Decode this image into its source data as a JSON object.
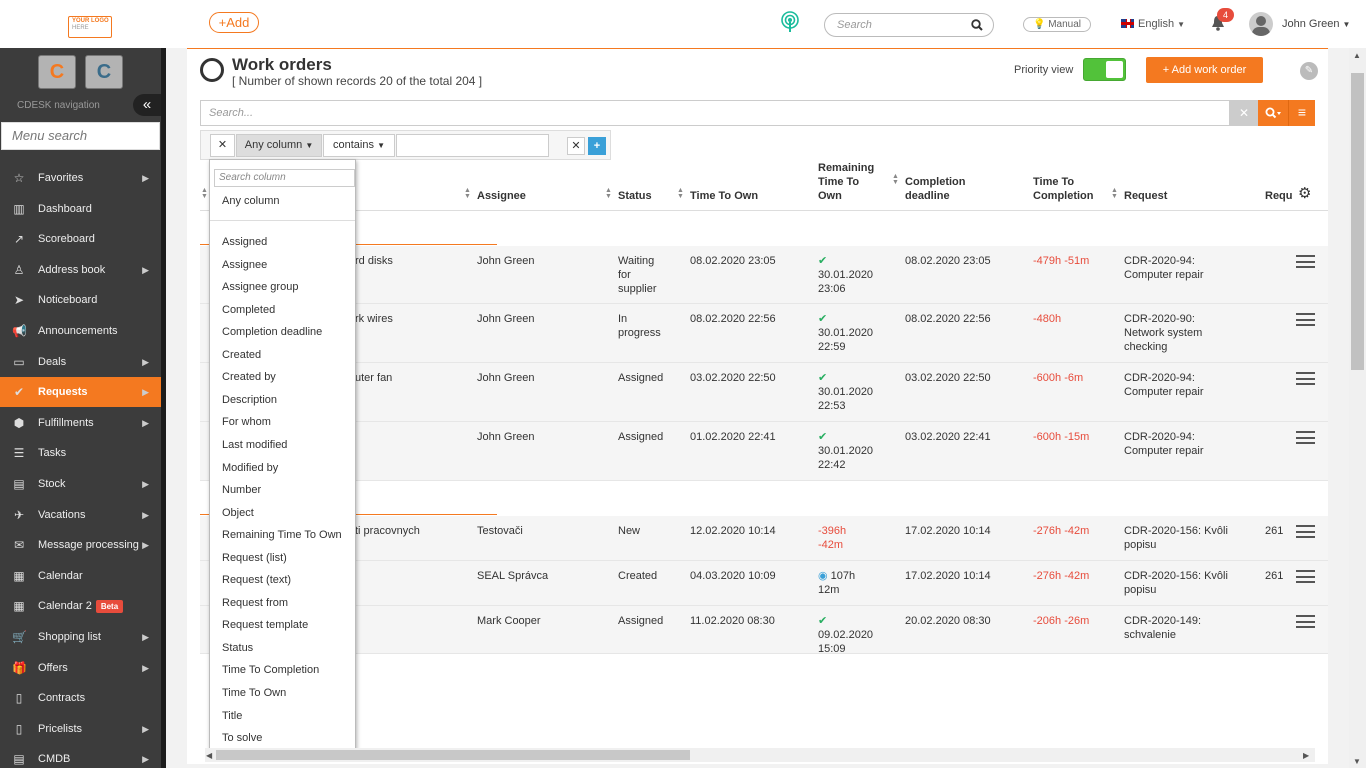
{
  "header": {
    "logo_text": "YOUR LOGO",
    "logo_sub": "HERE",
    "add_label": "+Add",
    "search_placeholder": "Search",
    "manual_label": "Manual",
    "language": "English",
    "notifications_count": "4",
    "user_name": "John Green"
  },
  "sidebar": {
    "nav_title": "CDESK navigation",
    "collapse": "«",
    "menu_search_placeholder": "Menu search",
    "items": [
      {
        "label": "Favorites",
        "icon": "star-icon",
        "arrow": true
      },
      {
        "label": "Dashboard",
        "icon": "bar-chart-icon",
        "arrow": false
      },
      {
        "label": "Scoreboard",
        "icon": "line-chart-icon",
        "arrow": false
      },
      {
        "label": "Address book",
        "icon": "user-icon",
        "arrow": true
      },
      {
        "label": "Noticeboard",
        "icon": "paper-plane-icon",
        "arrow": false
      },
      {
        "label": "Announcements",
        "icon": "megaphone-icon",
        "arrow": false
      },
      {
        "label": "Deals",
        "icon": "wallet-icon",
        "arrow": true
      },
      {
        "label": "Requests",
        "icon": "check-circle-icon",
        "arrow": true,
        "active": true
      },
      {
        "label": "Fulfillments",
        "icon": "cube-icon",
        "arrow": true
      },
      {
        "label": "Tasks",
        "icon": "tasks-icon",
        "arrow": false
      },
      {
        "label": "Stock",
        "icon": "archive-icon",
        "arrow": true
      },
      {
        "label": "Vacations",
        "icon": "plane-icon",
        "arrow": true
      },
      {
        "label": "Message processing",
        "icon": "envelope-icon",
        "arrow": true
      },
      {
        "label": "Calendar",
        "icon": "calendar-icon",
        "arrow": false
      },
      {
        "label": "Calendar 2",
        "icon": "calendar-icon",
        "arrow": false,
        "badge": "Beta"
      },
      {
        "label": "Shopping list",
        "icon": "cart-icon",
        "arrow": true
      },
      {
        "label": "Offers",
        "icon": "gift-icon",
        "arrow": true
      },
      {
        "label": "Contracts",
        "icon": "file-icon",
        "arrow": false
      },
      {
        "label": "Pricelists",
        "icon": "file-icon",
        "arrow": true
      },
      {
        "label": "CMDB",
        "icon": "server-icon",
        "arrow": true
      }
    ]
  },
  "page": {
    "title": "Work orders",
    "subtitle": "[ Number of shown records 20 of the total 204 ]",
    "priority_label": "Priority view",
    "add_button": "+ Add work order",
    "search_placeholder": "Search..."
  },
  "filter": {
    "column": "Any column",
    "operator": "contains",
    "value": ""
  },
  "columns": {
    "assignee": "Assignee",
    "status": "Status",
    "time_to_own": "Time To Own",
    "remaining": [
      "Remaining",
      "Time To",
      "Own"
    ],
    "completion": [
      "Completion",
      "deadline"
    ],
    "time_to_completion": [
      "Time To",
      "Completion"
    ],
    "request": "Request",
    "requ": "Requ"
  },
  "rows": [
    {
      "title": "rd disks",
      "assignee": "John Green",
      "status": [
        "Waiting",
        "for",
        "supplier"
      ],
      "tto": "08.02.2020 23:05",
      "rem": [
        "30.01.2020",
        "23:06"
      ],
      "rem_type": "check",
      "deadline": "08.02.2020 23:05",
      "ttc": "-479h -51m",
      "req": [
        "CDR-2020-94:",
        "Computer repair"
      ],
      "rq": ""
    },
    {
      "title": "rk wires",
      "assignee": "John Green",
      "status": [
        "In",
        "progress"
      ],
      "tto": "08.02.2020 22:56",
      "rem": [
        "30.01.2020",
        "22:59"
      ],
      "rem_type": "check",
      "deadline": "08.02.2020 22:56",
      "ttc": "-480h",
      "req": [
        "CDR-2020-90:",
        "Network system",
        "checking"
      ],
      "rq": ""
    },
    {
      "title": "uter fan",
      "assignee": "John Green",
      "status": [
        "Assigned"
      ],
      "tto": "03.02.2020 22:50",
      "rem": [
        "30.01.2020",
        "22:53"
      ],
      "rem_type": "check",
      "deadline": "03.02.2020 22:50",
      "ttc": "-600h -6m",
      "req": [
        "CDR-2020-94:",
        "Computer repair"
      ],
      "rq": ""
    },
    {
      "title": "",
      "assignee": "John Green",
      "status": [
        "Assigned"
      ],
      "tto": "01.02.2020 22:41",
      "rem": [
        "30.01.2020",
        "22:42"
      ],
      "rem_type": "check",
      "deadline": "03.02.2020 22:41",
      "ttc": "-600h -15m",
      "req": [
        "CDR-2020-94:",
        "Computer repair"
      ],
      "rq": ""
    },
    {
      "title": "ti pracovnych",
      "assignee": "Testovači",
      "status": [
        "New"
      ],
      "tto": "12.02.2020 10:14",
      "rem": [
        "-396h",
        "-42m"
      ],
      "rem_type": "red",
      "deadline": "17.02.2020 10:14",
      "ttc": "-276h -42m",
      "req": [
        "CDR-2020-156: Kvôli",
        "popisu"
      ],
      "rq": "261"
    },
    {
      "title": "",
      "assignee": "SEAL Správca",
      "status": [
        "Created"
      ],
      "tto": "04.03.2020 10:09",
      "rem": [
        "107h",
        "12m"
      ],
      "rem_type": "clock",
      "deadline": "17.02.2020 10:14",
      "ttc": "-276h -42m",
      "req": [
        "CDR-2020-156: Kvôli",
        "popisu"
      ],
      "rq": "261"
    },
    {
      "title": "",
      "assignee": "Mark Cooper",
      "status": [
        "Assigned"
      ],
      "tto": "11.02.2020 08:30",
      "rem": [
        "09.02.2020",
        "15:09"
      ],
      "rem_type": "check",
      "deadline": "20.02.2020 08:30",
      "ttc": "-206h -26m",
      "req": [
        "CDR-2020-149:",
        "schvalenie"
      ],
      "rq": ""
    }
  ],
  "dropdown": {
    "search_placeholder": "Search column",
    "any": "Any column",
    "items": [
      "Assigned",
      "Assignee",
      "Assignee group",
      "Completed",
      "Completion deadline",
      "Created",
      "Created by",
      "Description",
      "For whom",
      "Last modified",
      "Modified by",
      "Number",
      "Object",
      "Remaining Time To Own",
      "Request (list)",
      "Request (text)",
      "Request from",
      "Request template",
      "Status",
      "Time To Completion",
      "Time To Own",
      "Title",
      "To solve"
    ]
  },
  "colors": {
    "accent": "#f47920",
    "sidebar": "#3c3c3c",
    "red": "#e74c3c",
    "green": "#27ae60",
    "blue": "#3aa0d8"
  }
}
